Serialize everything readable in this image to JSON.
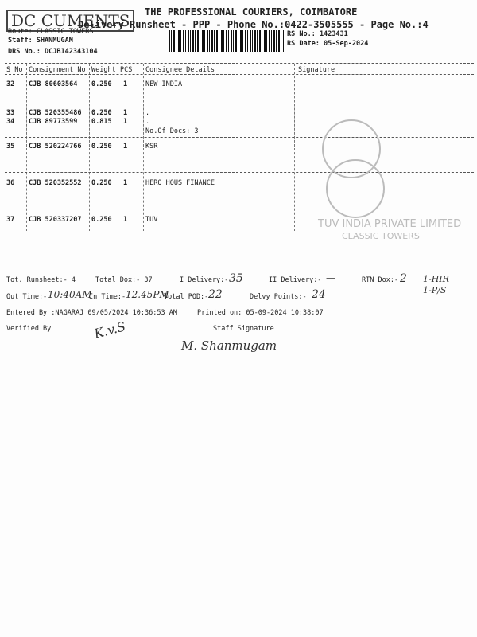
{
  "header": {
    "company": "THE PROFESSIONAL COURIERS, COIMBATORE",
    "subtitle": "Delivery Runsheet - PPP - Phone No.:0422-3505555 - Page No.:4",
    "route": "Route: CLASSIC TOWERS",
    "staff": "Staff: SHANMUGAM",
    "drs": "DRS No.: DCJB142343104",
    "rs_no": "RS No.: 1423431",
    "rs_date": "RS Date: 05-Sep-2024",
    "stamp": "DC CUMENTS"
  },
  "table": {
    "columns": [
      "S No",
      "Consignment No",
      "Weight",
      "PCS",
      "Consignee Details",
      "Signature"
    ],
    "rows": [
      {
        "sno": "32",
        "cno": "CJB 80603564",
        "weight": "0.250",
        "pcs": "1",
        "consignee": "NEW INDIA"
      },
      {
        "sno": "33",
        "cno": "CJB 520355486",
        "weight": "0.250",
        "pcs": "1",
        "consignee": "."
      },
      {
        "sno": "34",
        "cno": "CJB 89773599",
        "weight": "0.815",
        "pcs": "1",
        "consignee": ".",
        "extra": "No.Of Docs: 3"
      },
      {
        "sno": "35",
        "cno": "CJB 520224766",
        "weight": "0.250",
        "pcs": "1",
        "consignee": "KSR"
      },
      {
        "sno": "36",
        "cno": "CJB 520352552",
        "weight": "0.250",
        "pcs": "1",
        "consignee": "HERO HOUS FINANCE"
      },
      {
        "sno": "37",
        "cno": "CJB 520337207",
        "weight": "0.250",
        "pcs": "1",
        "consignee": "TUV"
      }
    ]
  },
  "stamps": {
    "tuv": "TUV INDIA PRIVATE LIMITED",
    "tuv2": "CLASSIC TOWERS"
  },
  "summary": {
    "tot_runsheet": "Tot. Runsheet:- 4",
    "total_dox": "Total Dox:-  37",
    "i_delivery": "I Delivery:-",
    "i_delivery_val": "35",
    "ii_delivery": "II Delivery:-",
    "ii_delivery_val": "—",
    "rtn_dox": "RTN Dox:-",
    "rtn_dox_val": "2",
    "rtn_note1": "1-HIR",
    "rtn_note2": "1-P/S",
    "out_time": "Out Time:-",
    "out_time_val": "10:40AM",
    "in_time": "In Time:-",
    "in_time_val": "12.45PM",
    "total_pod": "Total POD:-",
    "total_pod_val": "22",
    "delvy_points": "Delvy Points:-",
    "delvy_points_val": "24",
    "entered_by": "Entered By :NAGARAJ 09/05/2024 10:36:53 AM",
    "printed_on": "Printed on: 05-09-2024 10:38:07",
    "verified_by": "Verified By",
    "staff_signature": "Staff Signature",
    "verifier_sig": "K.v.S",
    "staff_sig": "M. Shanmugam"
  }
}
